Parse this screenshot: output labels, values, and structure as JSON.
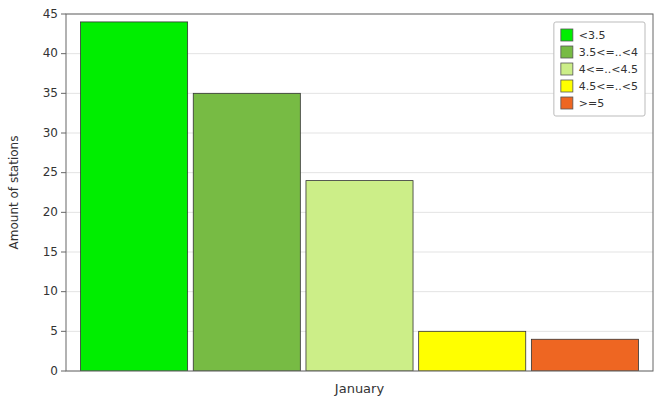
{
  "chart_data": {
    "type": "bar",
    "ylabel": "Amount of stations",
    "categories": [
      "January"
    ],
    "series": [
      {
        "name": "<3.5",
        "color": "#00ee00",
        "values": [
          44
        ]
      },
      {
        "name": "3.5<=..<4",
        "color": "#77bb44",
        "values": [
          35
        ]
      },
      {
        "name": "4<=..<4.5",
        "color": "#ccee88",
        "values": [
          24
        ]
      },
      {
        "name": "4.5<=..<5",
        "color": "#ffff00",
        "values": [
          5
        ]
      },
      {
        "name": ">=5",
        "color": "#ee6622",
        "values": [
          4
        ]
      }
    ],
    "ylim": [
      0,
      45
    ],
    "yticks": [
      0,
      5,
      10,
      15,
      20,
      25,
      30,
      35,
      40,
      45
    ],
    "grid": true,
    "legend": "upper right"
  }
}
